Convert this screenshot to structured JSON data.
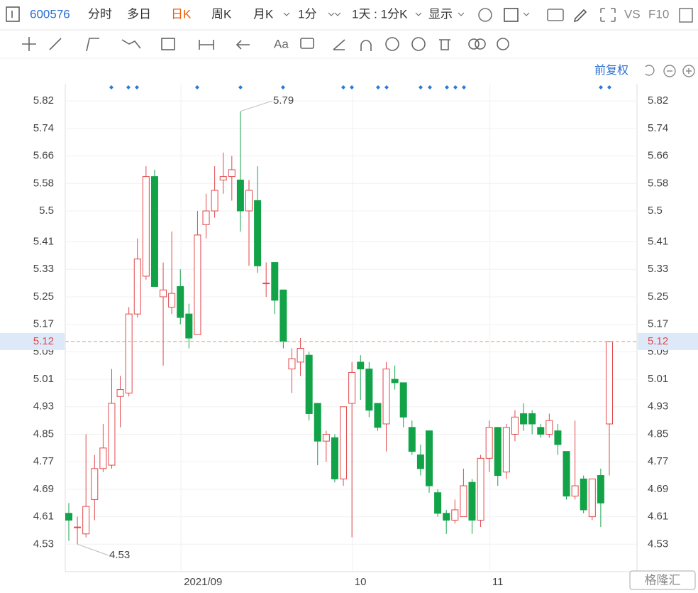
{
  "toolbar": {
    "code": "600576",
    "tabs": [
      "分时",
      "多日",
      "日K",
      "周K",
      "月K",
      "1分"
    ],
    "active_tab": 2,
    "period": "1天 : 1分K",
    "display": "显示",
    "vs": "VS",
    "f10": "F10"
  },
  "adjust": "前复权",
  "watermark": "格隆汇",
  "chart_data": {
    "type": "candlestick",
    "categories": [
      null,
      null,
      null,
      null,
      null,
      null,
      null,
      null,
      null,
      null,
      null,
      null,
      null,
      "2021/09",
      null,
      null,
      null,
      null,
      null,
      null,
      null,
      null,
      null,
      null,
      null,
      null,
      null,
      null,
      null,
      null,
      null,
      null,
      null,
      "10",
      null,
      null,
      null,
      null,
      null,
      null,
      null,
      null,
      null,
      null,
      null,
      null,
      null,
      null,
      null,
      "11",
      null,
      null,
      null,
      null,
      null,
      null,
      null,
      null,
      null,
      null,
      null,
      null,
      null,
      null
    ],
    "open": [
      4.62,
      4.58,
      4.56,
      4.66,
      4.75,
      4.76,
      4.96,
      4.97,
      5.2,
      5.31,
      5.6,
      5.25,
      5.22,
      5.28,
      5.2,
      5.14,
      5.46,
      5.5,
      5.59,
      5.6,
      5.59,
      5.5,
      5.53,
      5.29,
      5.35,
      5.27,
      5.04,
      5.06,
      5.08,
      4.94,
      4.83,
      4.84,
      4.72,
      4.94,
      5.06,
      5.04,
      4.94,
      4.88,
      5.01,
      5.0,
      4.87,
      4.79,
      4.86,
      4.68,
      4.62,
      4.6,
      4.61,
      4.71,
      4.6,
      4.78,
      4.87,
      4.74,
      4.85,
      4.91,
      4.91,
      4.87,
      4.85,
      4.86,
      4.8,
      4.67,
      4.72,
      4.61,
      4.73,
      4.88
    ],
    "high": [
      4.65,
      4.61,
      4.85,
      4.79,
      4.88,
      5.04,
      5.02,
      5.22,
      5.42,
      5.63,
      5.62,
      5.35,
      5.44,
      5.33,
      5.23,
      5.5,
      5.55,
      5.63,
      5.67,
      5.66,
      5.79,
      5.59,
      5.63,
      5.35,
      5.35,
      5.27,
      5.1,
      5.13,
      5.09,
      4.94,
      4.86,
      4.85,
      4.93,
      5.06,
      5.08,
      5.06,
      4.94,
      5.06,
      5.05,
      5.0,
      4.89,
      4.82,
      4.86,
      4.69,
      4.63,
      4.66,
      4.75,
      4.72,
      4.79,
      4.89,
      4.87,
      4.88,
      4.92,
      4.94,
      4.92,
      4.88,
      4.91,
      4.88,
      4.8,
      4.89,
      4.73,
      4.72,
      4.75,
      5.12
    ],
    "low": [
      4.54,
      4.53,
      4.55,
      4.6,
      4.74,
      4.75,
      4.87,
      4.96,
      5.19,
      5.3,
      5.28,
      5.05,
      5.2,
      5.17,
      5.1,
      5.14,
      5.42,
      5.48,
      5.55,
      5.53,
      5.44,
      5.34,
      5.32,
      5.25,
      5.2,
      5.1,
      4.97,
      5.02,
      4.89,
      4.76,
      4.77,
      4.71,
      4.7,
      4.55,
      4.95,
      4.9,
      4.86,
      4.8,
      4.98,
      4.87,
      4.79,
      4.73,
      4.68,
      4.61,
      4.56,
      4.59,
      4.61,
      4.56,
      4.58,
      4.74,
      4.7,
      4.72,
      4.83,
      4.86,
      4.85,
      4.84,
      4.84,
      4.79,
      4.66,
      4.66,
      4.62,
      4.6,
      4.58,
      4.73
    ],
    "close": [
      4.6,
      4.58,
      4.64,
      4.75,
      4.81,
      4.94,
      4.98,
      5.2,
      5.36,
      5.6,
      5.28,
      5.27,
      5.26,
      5.19,
      5.13,
      5.43,
      5.5,
      5.56,
      5.6,
      5.62,
      5.5,
      5.56,
      5.34,
      5.29,
      5.24,
      5.12,
      5.07,
      5.1,
      4.91,
      4.83,
      4.85,
      4.72,
      4.93,
      5.03,
      5.04,
      4.92,
      4.87,
      5.04,
      5.0,
      4.9,
      4.8,
      4.75,
      4.7,
      4.62,
      4.6,
      4.63,
      4.7,
      4.6,
      4.78,
      4.87,
      4.73,
      4.87,
      4.9,
      4.88,
      4.88,
      4.85,
      4.89,
      4.82,
      4.67,
      4.7,
      4.63,
      4.72,
      4.65,
      5.12
    ],
    "up_color": "#e2474b",
    "down_color": "#12a349",
    "ylim": [
      4.45,
      5.87
    ],
    "yticks": [
      4.53,
      4.61,
      4.69,
      4.77,
      4.85,
      4.93,
      5.01,
      5.09,
      5.17,
      5.25,
      5.33,
      5.41,
      5.5,
      5.58,
      5.66,
      5.74,
      5.82
    ],
    "grid": true,
    "current_price": 5.12,
    "high_annotation": 5.79,
    "low_annotation": 4.53
  }
}
